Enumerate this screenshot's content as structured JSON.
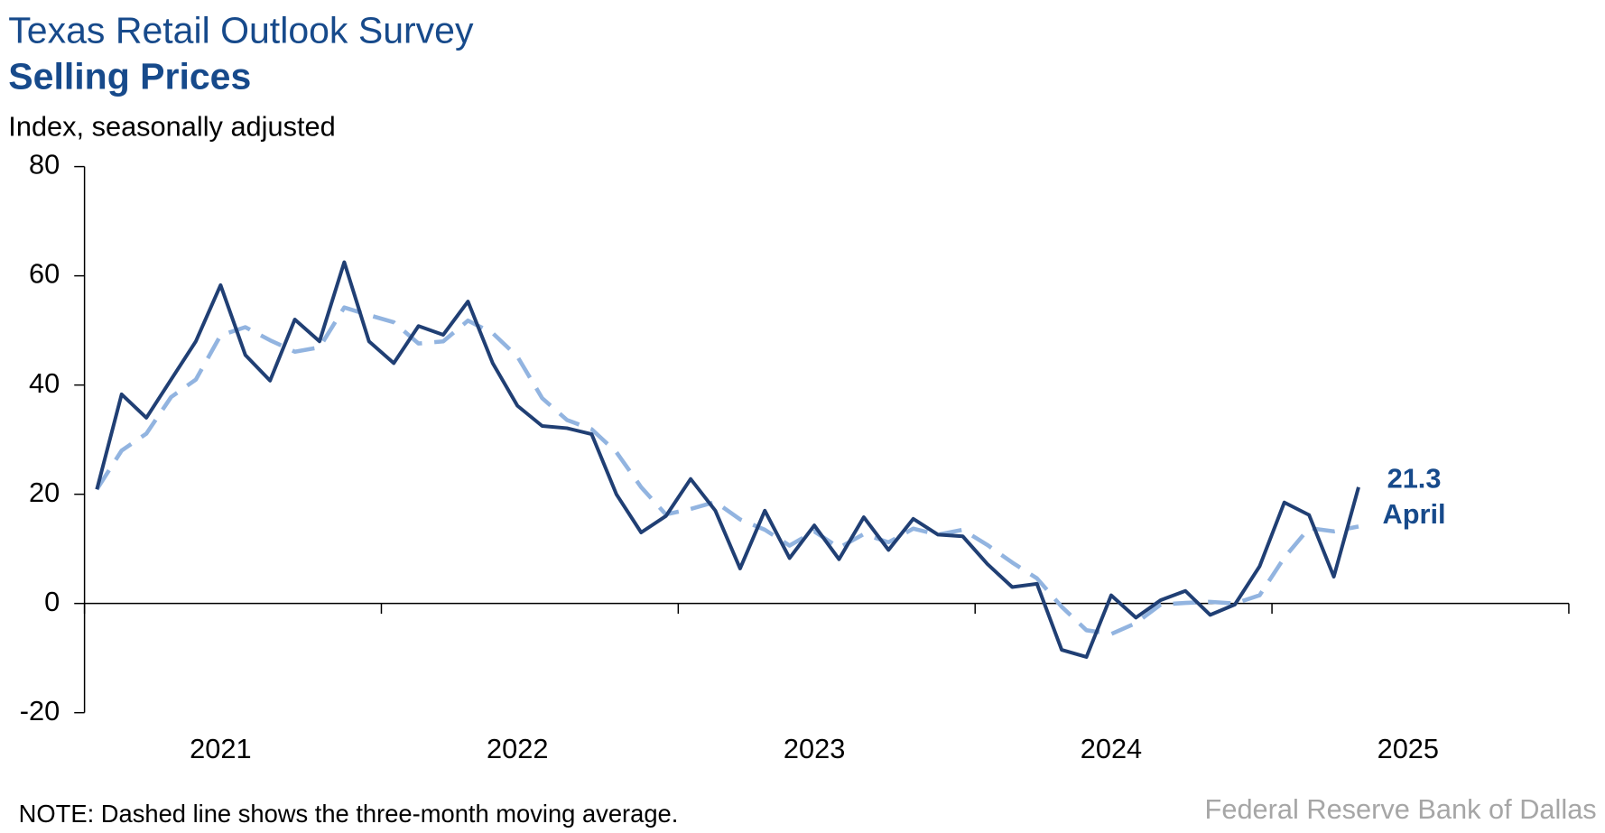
{
  "chart_data": {
    "type": "line",
    "title": "Texas Retail Outlook Survey",
    "subtitle": "Selling Prices",
    "y_axis_label": "Index, seasonally adjusted",
    "note": "NOTE: Dashed line shows the three-month moving average.",
    "source": "Federal Reserve Bank of Dallas",
    "annotation": "April",
    "x": [
      "2021-01",
      "2021-02",
      "2021-03",
      "2021-04",
      "2021-05",
      "2021-06",
      "2021-07",
      "2021-08",
      "2021-09",
      "2021-10",
      "2021-11",
      "2021-12",
      "2022-01",
      "2022-02",
      "2022-03",
      "2022-04",
      "2022-05",
      "2022-06",
      "2022-07",
      "2022-08",
      "2022-09",
      "2022-10",
      "2022-11",
      "2022-12",
      "2023-01",
      "2023-02",
      "2023-03",
      "2023-04",
      "2023-05",
      "2023-06",
      "2023-07",
      "2023-08",
      "2023-09",
      "2023-10",
      "2023-11",
      "2023-12",
      "2024-01",
      "2024-02",
      "2024-03",
      "2024-04",
      "2024-05",
      "2024-06",
      "2024-07",
      "2024-08",
      "2024-09",
      "2024-10",
      "2024-11",
      "2024-12",
      "2025-01",
      "2025-02",
      "2025-03",
      "2025-04"
    ],
    "xlim": [
      "2021-01",
      "2025-12"
    ],
    "xticks": [
      "2021",
      "2022",
      "2023",
      "2024",
      "2025"
    ],
    "series": [
      {
        "name": "Selling prices index",
        "color": "#203f74",
        "style": "solid",
        "values": [
          20.9,
          38.3,
          34,
          41,
          48,
          58.3,
          45.5,
          40.8,
          52,
          48,
          62.5,
          48,
          44,
          50.8,
          49.2,
          55.3,
          44,
          36.2,
          32.5,
          32.1,
          31,
          20,
          13,
          16,
          22.8,
          17,
          6.4,
          17,
          8.3,
          14.3,
          8.1,
          15.8,
          9.8,
          15.5,
          12.6,
          12.3,
          7.2,
          3,
          3.6,
          -8.5,
          -9.8,
          1.5,
          -2.6,
          0.6,
          2.3,
          -2.1,
          -0.2,
          6.8,
          18.5,
          16.2,
          4.9,
          21.3
        ]
      },
      {
        "name": "Three-month moving average",
        "color": "#92b4e0",
        "style": "dashed",
        "values": [
          20.9,
          28,
          31.1,
          37.8,
          41,
          49.1,
          50.6,
          48.2,
          46.1,
          46.9,
          54.2,
          52.8,
          51.5,
          47.6,
          48,
          51.8,
          49.5,
          45.2,
          37.6,
          33.6,
          31.9,
          27.7,
          21.3,
          16.3,
          17.3,
          18.6,
          15.4,
          13.5,
          10.6,
          13.2,
          10.2,
          12.7,
          11.2,
          13.7,
          12.6,
          13.5,
          10.7,
          7.5,
          4.6,
          -0.6,
          -4.9,
          -5.6,
          -3.6,
          -0.2,
          0.1,
          0.3,
          0,
          1.5,
          8.4,
          13.8,
          13.2,
          14.1
        ]
      }
    ],
    "ylim": [
      -20,
      80
    ],
    "yticks": [
      -20,
      0,
      20,
      40,
      60,
      80
    ]
  }
}
